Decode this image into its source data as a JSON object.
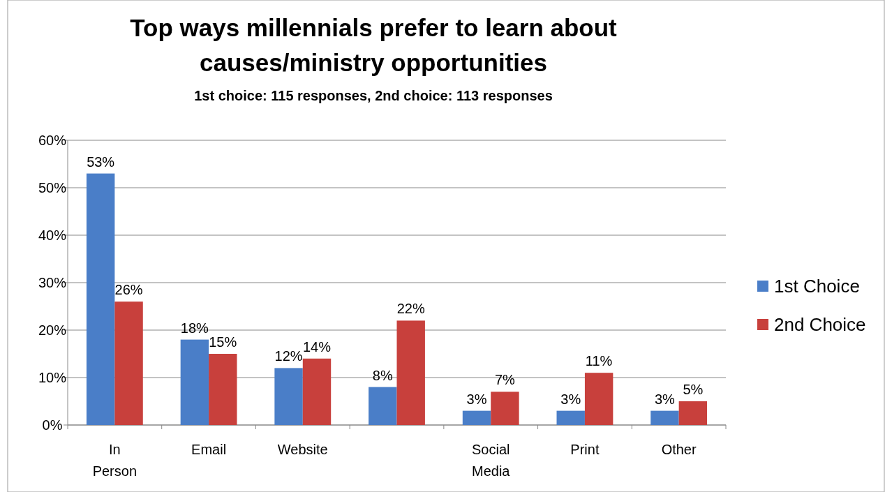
{
  "chart_data": {
    "type": "bar",
    "title": "Top ways millennials prefer to learn about causes/ministry opportunities",
    "subtitle": "1st choice: 115 responses, 2nd choice: 113 responses",
    "categories": [
      "In Person",
      "Email",
      "Website",
      null,
      "Social Media",
      "Print",
      "Other"
    ],
    "series": [
      {
        "name": "1st Choice",
        "color": "#4a7ec8",
        "values": [
          53,
          18,
          12,
          8,
          3,
          3,
          3
        ],
        "value_labels": [
          "53%",
          "18%",
          "12%",
          "8%",
          "3%",
          "3%",
          "3%"
        ]
      },
      {
        "name": "2nd Choice",
        "color": "#c8403c",
        "values": [
          26,
          15,
          14,
          22,
          7,
          11,
          5
        ],
        "value_labels": [
          "26%",
          "15%",
          "14%",
          "22%",
          "7%",
          "11%",
          "5%"
        ]
      }
    ],
    "ylim": [
      0,
      60
    ],
    "yticks": [
      {
        "value": 0,
        "label": "0%"
      },
      {
        "value": 10,
        "label": "10%"
      },
      {
        "value": 20,
        "label": "20%"
      },
      {
        "value": 30,
        "label": "30%"
      },
      {
        "value": 40,
        "label": "40%"
      },
      {
        "value": 50,
        "label": "50%"
      },
      {
        "value": 60,
        "label": "60%"
      }
    ],
    "grid": "y",
    "legend": "right"
  }
}
